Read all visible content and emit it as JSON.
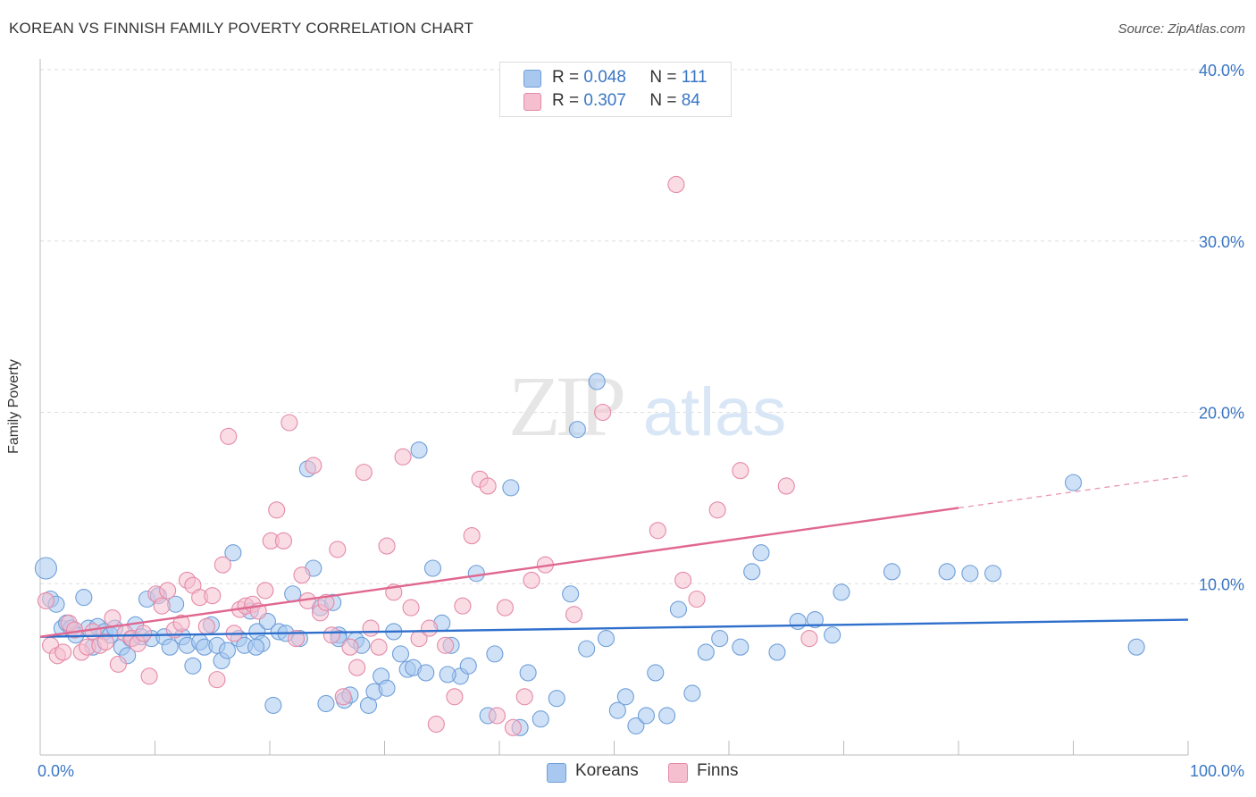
{
  "title": "KOREAN VS FINNISH FAMILY POVERTY CORRELATION CHART",
  "source": "Source: ZipAtlas.com",
  "watermark": {
    "zip": "ZIP",
    "atlas": "atlas"
  },
  "legend": {
    "rows": [
      {
        "r_label": "R =",
        "r_value": "0.048",
        "n_label": "N =",
        "n_value": "111"
      },
      {
        "r_label": "R =",
        "r_value": "0.307",
        "n_label": "N =",
        "n_value": "84"
      }
    ]
  },
  "bottom_legend": {
    "koreans": "Koreans",
    "finns": "Finns"
  },
  "colors": {
    "koreans_fill": "#a8c8f0",
    "koreans_stroke": "#6f9fd8",
    "koreans_line": "#2f6fcc",
    "finns_fill": "#f6bfd0",
    "finns_stroke": "#e48aa8",
    "finns_line": "#e06890",
    "axis_text": "#3a76c4",
    "grid": "#dddddd"
  },
  "chart_data": {
    "type": "scatter",
    "title": "KOREAN VS FINNISH FAMILY POVERTY CORRELATION CHART",
    "xlabel": "",
    "ylabel": "Family Poverty",
    "xlim": [
      0,
      100
    ],
    "ylim": [
      0,
      40
    ],
    "x_tick_labels": [
      "0.0%",
      "100.0%"
    ],
    "y_ticks": [
      10,
      20,
      30,
      40
    ],
    "y_tick_labels": [
      "10.0%",
      "20.0%",
      "30.0%",
      "40.0%"
    ],
    "grid": true,
    "series": [
      {
        "name": "Koreans",
        "r": 0.048,
        "n": 111,
        "trend": {
          "x": [
            0,
            100
          ],
          "y": [
            6.9,
            7.9
          ],
          "dashed_from": null
        },
        "points": [
          [
            0.5,
            10.9
          ],
          [
            0.9,
            9.1
          ],
          [
            1.4,
            8.8
          ],
          [
            1.9,
            7.4
          ],
          [
            2.3,
            7.7
          ],
          [
            2.7,
            7.4
          ],
          [
            3.1,
            7.0
          ],
          [
            3.8,
            9.2
          ],
          [
            4.2,
            7.4
          ],
          [
            4.6,
            6.3
          ],
          [
            5.0,
            7.5
          ],
          [
            5.6,
            7.2
          ],
          [
            6.1,
            7.0
          ],
          [
            6.5,
            7.4
          ],
          [
            7.1,
            6.3
          ],
          [
            7.6,
            5.8
          ],
          [
            7.9,
            6.8
          ],
          [
            8.3,
            7.6
          ],
          [
            8.8,
            6.9
          ],
          [
            9.3,
            9.1
          ],
          [
            9.7,
            6.8
          ],
          [
            10.3,
            9.3
          ],
          [
            10.8,
            6.9
          ],
          [
            11.3,
            6.3
          ],
          [
            11.8,
            8.8
          ],
          [
            12.4,
            6.9
          ],
          [
            12.8,
            6.4
          ],
          [
            13.3,
            5.2
          ],
          [
            13.9,
            6.6
          ],
          [
            14.3,
            6.3
          ],
          [
            14.9,
            7.6
          ],
          [
            15.4,
            6.4
          ],
          [
            15.8,
            5.5
          ],
          [
            16.3,
            6.1
          ],
          [
            16.8,
            11.8
          ],
          [
            17.3,
            6.8
          ],
          [
            17.8,
            6.4
          ],
          [
            18.3,
            8.4
          ],
          [
            18.9,
            7.2
          ],
          [
            19.3,
            6.5
          ],
          [
            19.8,
            7.8
          ],
          [
            20.3,
            2.9
          ],
          [
            20.8,
            7.2
          ],
          [
            21.4,
            7.1
          ],
          [
            22.0,
            9.4
          ],
          [
            22.6,
            6.8
          ],
          [
            23.3,
            16.7
          ],
          [
            23.8,
            10.9
          ],
          [
            24.4,
            8.6
          ],
          [
            24.9,
            3.0
          ],
          [
            25.5,
            8.9
          ],
          [
            26.0,
            7.0
          ],
          [
            26.5,
            3.2
          ],
          [
            27.0,
            3.5
          ],
          [
            27.5,
            6.7
          ],
          [
            28.0,
            6.4
          ],
          [
            28.6,
            2.9
          ],
          [
            29.1,
            3.7
          ],
          [
            29.7,
            4.6
          ],
          [
            30.2,
            3.9
          ],
          [
            30.8,
            7.2
          ],
          [
            31.4,
            5.9
          ],
          [
            32.0,
            5.0
          ],
          [
            32.5,
            5.1
          ],
          [
            33.0,
            17.8
          ],
          [
            33.6,
            4.8
          ],
          [
            34.2,
            10.9
          ],
          [
            35.0,
            7.7
          ],
          [
            35.8,
            6.4
          ],
          [
            36.6,
            4.6
          ],
          [
            37.3,
            5.2
          ],
          [
            38.0,
            10.6
          ],
          [
            39.0,
            2.3
          ],
          [
            39.6,
            5.9
          ],
          [
            41.0,
            15.6
          ],
          [
            41.8,
            1.6
          ],
          [
            42.5,
            4.8
          ],
          [
            43.6,
            2.1
          ],
          [
            45.0,
            3.3
          ],
          [
            46.2,
            9.4
          ],
          [
            46.8,
            19.0
          ],
          [
            47.6,
            6.2
          ],
          [
            48.5,
            21.8
          ],
          [
            49.3,
            6.8
          ],
          [
            50.3,
            2.6
          ],
          [
            51.0,
            3.4
          ],
          [
            51.9,
            1.7
          ],
          [
            52.8,
            2.3
          ],
          [
            53.6,
            4.8
          ],
          [
            54.6,
            2.3
          ],
          [
            55.6,
            8.5
          ],
          [
            56.8,
            3.6
          ],
          [
            58.0,
            6.0
          ],
          [
            59.2,
            6.8
          ],
          [
            61.0,
            6.3
          ],
          [
            62.0,
            10.7
          ],
          [
            62.8,
            11.8
          ],
          [
            64.2,
            6.0
          ],
          [
            66.0,
            7.8
          ],
          [
            67.5,
            7.9
          ],
          [
            69.0,
            7.0
          ],
          [
            69.8,
            9.5
          ],
          [
            74.2,
            10.7
          ],
          [
            79.0,
            10.7
          ],
          [
            81.0,
            10.6
          ],
          [
            83.0,
            10.6
          ],
          [
            90.0,
            15.9
          ],
          [
            95.5,
            6.3
          ],
          [
            35.5,
            4.7
          ],
          [
            18.8,
            6.3
          ],
          [
            26.0,
            6.8
          ]
        ]
      },
      {
        "name": "Finns",
        "r": 0.307,
        "n": 84,
        "trend": {
          "x": [
            0,
            100
          ],
          "y": [
            6.9,
            16.3
          ],
          "dashed_from": 80
        },
        "points": [
          [
            0.5,
            9.0
          ],
          [
            0.9,
            6.4
          ],
          [
            1.5,
            5.8
          ],
          [
            2.0,
            6.0
          ],
          [
            2.5,
            7.7
          ],
          [
            3.0,
            7.3
          ],
          [
            3.6,
            6.0
          ],
          [
            4.1,
            6.3
          ],
          [
            4.6,
            7.2
          ],
          [
            5.2,
            6.4
          ],
          [
            5.7,
            6.6
          ],
          [
            6.3,
            8.0
          ],
          [
            6.8,
            5.3
          ],
          [
            7.4,
            7.1
          ],
          [
            8.0,
            6.8
          ],
          [
            8.5,
            6.5
          ],
          [
            9.0,
            7.1
          ],
          [
            9.5,
            4.6
          ],
          [
            10.1,
            9.4
          ],
          [
            10.6,
            8.7
          ],
          [
            11.1,
            9.6
          ],
          [
            11.7,
            7.3
          ],
          [
            12.3,
            7.7
          ],
          [
            12.8,
            10.2
          ],
          [
            13.3,
            9.9
          ],
          [
            13.9,
            9.2
          ],
          [
            14.5,
            7.5
          ],
          [
            15.0,
            9.3
          ],
          [
            15.4,
            4.4
          ],
          [
            15.9,
            11.1
          ],
          [
            16.4,
            18.6
          ],
          [
            16.9,
            7.1
          ],
          [
            17.4,
            8.5
          ],
          [
            17.9,
            8.7
          ],
          [
            18.5,
            8.8
          ],
          [
            19.0,
            8.4
          ],
          [
            19.6,
            9.6
          ],
          [
            20.1,
            12.5
          ],
          [
            20.6,
            14.3
          ],
          [
            21.2,
            12.5
          ],
          [
            21.7,
            19.4
          ],
          [
            22.3,
            6.8
          ],
          [
            22.8,
            10.5
          ],
          [
            23.3,
            9.0
          ],
          [
            23.8,
            16.9
          ],
          [
            24.4,
            8.3
          ],
          [
            24.9,
            8.9
          ],
          [
            25.4,
            7.0
          ],
          [
            25.9,
            12.0
          ],
          [
            26.4,
            3.4
          ],
          [
            27.0,
            6.3
          ],
          [
            27.6,
            5.1
          ],
          [
            28.2,
            16.5
          ],
          [
            28.8,
            7.4
          ],
          [
            29.5,
            6.3
          ],
          [
            30.2,
            12.2
          ],
          [
            30.8,
            9.5
          ],
          [
            31.6,
            17.4
          ],
          [
            32.3,
            8.6
          ],
          [
            33.0,
            6.8
          ],
          [
            33.9,
            7.4
          ],
          [
            34.5,
            1.8
          ],
          [
            35.3,
            6.4
          ],
          [
            36.1,
            3.4
          ],
          [
            36.8,
            8.7
          ],
          [
            37.6,
            12.8
          ],
          [
            38.3,
            16.1
          ],
          [
            39.0,
            15.7
          ],
          [
            39.8,
            2.3
          ],
          [
            40.5,
            8.6
          ],
          [
            41.2,
            1.6
          ],
          [
            42.2,
            3.4
          ],
          [
            42.8,
            10.2
          ],
          [
            44.0,
            11.1
          ],
          [
            46.5,
            8.2
          ],
          [
            49.0,
            20.0
          ],
          [
            53.8,
            13.1
          ],
          [
            55.4,
            33.3
          ],
          [
            56.0,
            10.2
          ],
          [
            57.2,
            9.1
          ],
          [
            59.0,
            14.3
          ],
          [
            61.0,
            16.6
          ],
          [
            65.0,
            15.7
          ],
          [
            67.0,
            6.8
          ]
        ]
      }
    ]
  }
}
